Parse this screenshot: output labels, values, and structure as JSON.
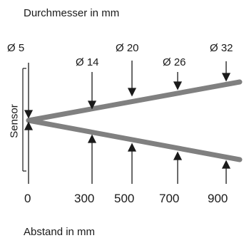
{
  "title_top": "Durchmesser in mm",
  "title_bottom": "Abstand in mm",
  "sensor_label": "Sensor",
  "diameter_labels": [
    "Ø 5",
    "Ø 14",
    "Ø 20",
    "Ø 26",
    "Ø 32"
  ],
  "distance_ticks": [
    "0",
    "300",
    "500",
    "700",
    "900"
  ],
  "colors": {
    "beam": "#808080",
    "ink": "#1a1a1a"
  }
}
